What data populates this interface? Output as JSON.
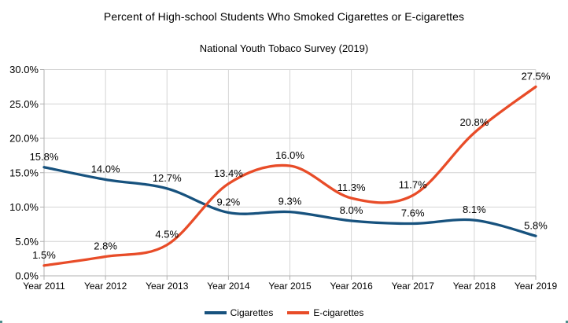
{
  "chart_data": {
    "type": "line",
    "title": "Percent of High-school Students Who Smoked Cigarettes or E-cigarettes",
    "subtitle": "National Youth Tobaco Survey (2019)",
    "categories": [
      "Year 2011",
      "Year 2012",
      "Year 2013",
      "Year 2014",
      "Year 2015",
      "Year 2016",
      "Year 2017",
      "Year 2018",
      "Year 2019"
    ],
    "series": [
      {
        "name": "Cigarettes",
        "color": "#17527E",
        "values": [
          15.8,
          14.0,
          12.7,
          9.2,
          9.3,
          8.0,
          7.6,
          8.1,
          5.8
        ],
        "point_labels": [
          "15.8%",
          "14.0%",
          "12.7%",
          "9.2%",
          "9.3%",
          "8.0%",
          "7.6%",
          "8.1%",
          "5.8%"
        ]
      },
      {
        "name": "E-cigarettes",
        "color": "#E84C28",
        "values": [
          1.5,
          2.8,
          4.5,
          13.4,
          16.0,
          11.3,
          11.7,
          20.8,
          27.5
        ],
        "point_labels": [
          "1.5%",
          "2.8%",
          "4.5%",
          "13.4%",
          "16.0%",
          "11.3%",
          "11.7%",
          "20.8%",
          "27.5%"
        ]
      }
    ],
    "y_axis": {
      "min": 0,
      "max": 30,
      "step": 5,
      "tick_labels": [
        "0.0%",
        "5.0%",
        "10.0%",
        "15.0%",
        "20.0%",
        "25.0%",
        "30.0%"
      ]
    },
    "x_axis_label": "",
    "ylabel": "",
    "grid": true,
    "smooth_lines": true,
    "legend_position": "bottom",
    "colors": {
      "grid": "#d4d4d4",
      "axis": "#b0b0b0",
      "text": "#000000",
      "background": "#ffffff"
    }
  }
}
